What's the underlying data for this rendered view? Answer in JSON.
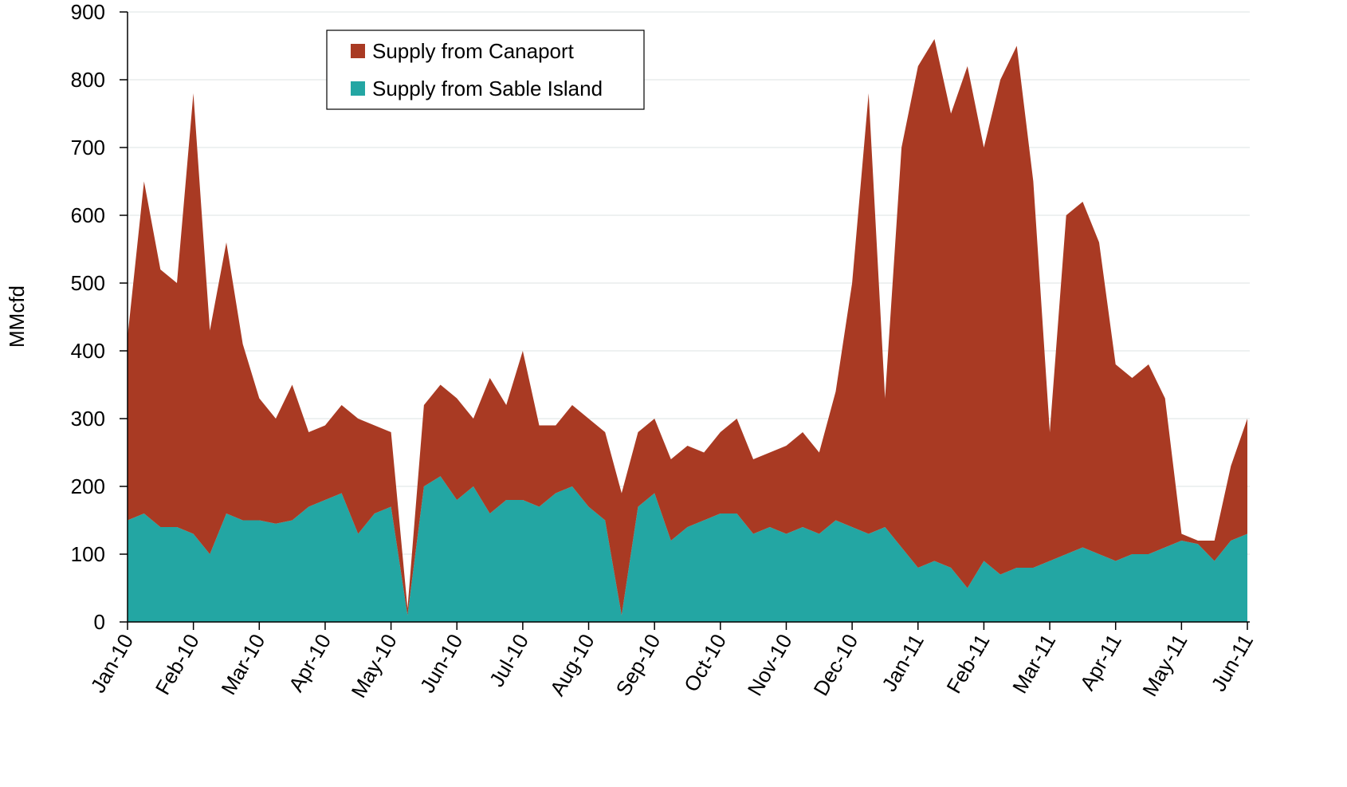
{
  "chart_data": {
    "type": "stacked-area",
    "y_label": "MMcfd",
    "categories": [
      "Jan-10",
      null,
      null,
      null,
      "Feb-10",
      null,
      null,
      null,
      "Mar-10",
      null,
      null,
      null,
      "Apr-10",
      null,
      null,
      null,
      "May-10",
      null,
      null,
      null,
      "Jun-10",
      null,
      null,
      null,
      "Jul-10",
      null,
      null,
      null,
      "Aug-10",
      null,
      null,
      null,
      "Sep-10",
      null,
      null,
      null,
      "Oct-10",
      null,
      null,
      null,
      "Nov-10",
      null,
      null,
      null,
      "Dec-10",
      null,
      null,
      null,
      "Jan-11",
      null,
      null,
      null,
      "Feb-11",
      null,
      null,
      null,
      "Mar-11",
      null,
      null,
      null,
      "Apr-11",
      null,
      null,
      null,
      "May-11",
      null,
      null,
      null,
      "Jun-11"
    ],
    "series": [
      {
        "name": "Supply from Canaport",
        "color": "#a93a23",
        "values": [
          270,
          490,
          380,
          360,
          650,
          330,
          400,
          260,
          180,
          155,
          200,
          110,
          110,
          130,
          170,
          130,
          110,
          10,
          120,
          135,
          150,
          100,
          200,
          140,
          220,
          120,
          100,
          120,
          130,
          130,
          180,
          110,
          110,
          120,
          120,
          100,
          120,
          140,
          110,
          110,
          130,
          140,
          120,
          190,
          360,
          650,
          190,
          590,
          740,
          770,
          670,
          770,
          610,
          730,
          770,
          570,
          190,
          500,
          510,
          460,
          290,
          260,
          280,
          220,
          10,
          5,
          30,
          110,
          170
        ]
      },
      {
        "name": "Supply from Sable Island",
        "color": "#23a6a3",
        "values": [
          150,
          160,
          140,
          140,
          130,
          100,
          160,
          150,
          150,
          145,
          150,
          170,
          180,
          190,
          130,
          160,
          170,
          10,
          200,
          215,
          180,
          200,
          160,
          180,
          180,
          170,
          190,
          200,
          170,
          150,
          10,
          170,
          190,
          120,
          140,
          150,
          160,
          160,
          130,
          140,
          130,
          140,
          130,
          150,
          140,
          130,
          140,
          110,
          80,
          90,
          80,
          50,
          90,
          70,
          80,
          80,
          90,
          100,
          110,
          100,
          90,
          100,
          100,
          110,
          120,
          115,
          90,
          120,
          130
        ]
      }
    ],
    "ylim": [
      0,
      900
    ],
    "yticks": [
      0,
      100,
      200,
      300,
      400,
      500,
      600,
      700,
      800,
      900
    ],
    "grid": true
  }
}
